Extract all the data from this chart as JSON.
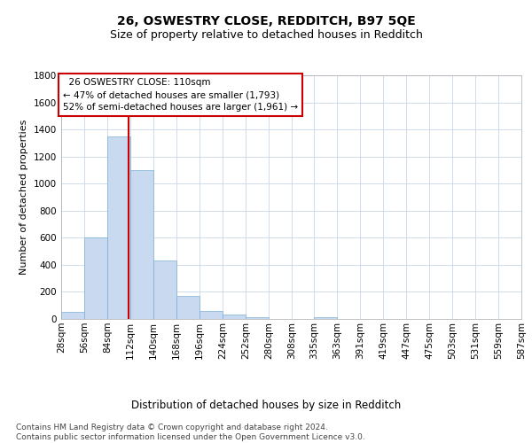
{
  "title1": "26, OSWESTRY CLOSE, REDDITCH, B97 5QE",
  "title2": "Size of property relative to detached houses in Redditch",
  "xlabel": "Distribution of detached houses by size in Redditch",
  "ylabel": "Number of detached properties",
  "footnote": "Contains HM Land Registry data © Crown copyright and database right 2024.\nContains public sector information licensed under the Open Government Licence v3.0.",
  "bar_edges": [
    28,
    56,
    84,
    112,
    140,
    168,
    196,
    224,
    252,
    280,
    308,
    335,
    363,
    391,
    419,
    447,
    475,
    503,
    531,
    559,
    587
  ],
  "bar_heights": [
    50,
    600,
    1350,
    1100,
    430,
    170,
    60,
    35,
    15,
    0,
    0,
    15,
    0,
    0,
    0,
    0,
    0,
    0,
    0,
    0
  ],
  "bar_color": "#c9d9f0",
  "bar_edge_color": "#7bafd4",
  "grid_color": "#c8d8e8",
  "annotation_box_color": "#cc0000",
  "vline_x": 110,
  "annotation_text": "  26 OSWESTRY CLOSE: 110sqm\n← 47% of detached houses are smaller (1,793)\n52% of semi-detached houses are larger (1,961) →",
  "ylim": [
    0,
    1800
  ],
  "yticks": [
    0,
    200,
    400,
    600,
    800,
    1000,
    1200,
    1400,
    1600,
    1800
  ],
  "bg_color": "#ffffff",
  "title1_fontsize": 10,
  "title2_fontsize": 9,
  "xlabel_fontsize": 8.5,
  "ylabel_fontsize": 8,
  "annotation_fontsize": 7.5,
  "tick_fontsize": 7.5
}
